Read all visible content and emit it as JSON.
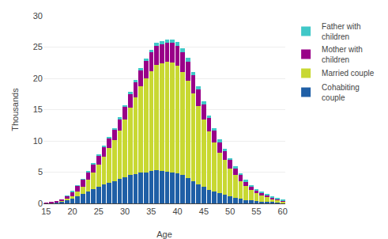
{
  "chart_data": {
    "type": "bar",
    "stacked": true,
    "xlabel": "Age",
    "ylabel": "Thousands",
    "x": [
      15,
      16,
      17,
      18,
      19,
      20,
      21,
      22,
      23,
      24,
      25,
      26,
      27,
      28,
      29,
      30,
      31,
      32,
      33,
      34,
      35,
      36,
      37,
      38,
      39,
      40,
      41,
      42,
      43,
      44,
      45,
      46,
      47,
      48,
      49,
      50,
      51,
      52,
      53,
      54,
      55,
      56,
      57,
      58,
      59,
      60
    ],
    "series": [
      {
        "name": "Cohabiting\ncouple",
        "color": "#1f5fa6",
        "values": [
          0.05,
          0.1,
          0.2,
          0.3,
          0.55,
          0.8,
          1.1,
          1.5,
          1.9,
          2.3,
          2.7,
          3.0,
          3.3,
          3.6,
          3.9,
          4.2,
          4.5,
          4.7,
          4.9,
          5.0,
          5.2,
          5.3,
          5.2,
          5.1,
          5.0,
          4.8,
          4.5,
          4.1,
          3.6,
          3.1,
          2.6,
          2.2,
          1.9,
          1.6,
          1.4,
          1.1,
          0.9,
          0.7,
          0.55,
          0.45,
          0.35,
          0.3,
          0.25,
          0.2,
          0.15,
          0.1
        ]
      },
      {
        "name": "Married couple",
        "color": "#c8d832",
        "values": [
          0.0,
          0.0,
          0.05,
          0.1,
          0.2,
          0.4,
          0.8,
          1.2,
          1.9,
          2.7,
          3.5,
          4.5,
          5.5,
          6.5,
          7.8,
          9.2,
          10.8,
          12.3,
          13.8,
          15.0,
          16.0,
          16.8,
          17.2,
          17.5,
          17.5,
          17.2,
          16.5,
          15.5,
          14.0,
          12.5,
          10.8,
          9.3,
          7.8,
          6.5,
          5.5,
          4.5,
          3.6,
          2.9,
          2.2,
          1.7,
          1.3,
          1.0,
          0.75,
          0.55,
          0.4,
          0.25
        ]
      },
      {
        "name": "Mother with\nchildren",
        "color": "#990088",
        "values": [
          0.05,
          0.1,
          0.15,
          0.25,
          0.4,
          0.65,
          0.9,
          1.1,
          1.2,
          1.3,
          1.4,
          1.5,
          1.6,
          1.7,
          1.8,
          2.0,
          2.2,
          2.4,
          2.6,
          2.8,
          3.0,
          3.1,
          3.1,
          3.15,
          3.15,
          3.2,
          3.2,
          3.05,
          2.85,
          2.65,
          2.45,
          2.15,
          1.9,
          1.7,
          1.5,
          1.3,
          1.1,
          0.9,
          0.75,
          0.6,
          0.5,
          0.4,
          0.3,
          0.25,
          0.2,
          0.12
        ]
      },
      {
        "name": "Father with\nchildren",
        "color": "#40c8c8",
        "values": [
          0.0,
          0.0,
          0.0,
          0.0,
          0.05,
          0.05,
          0.1,
          0.1,
          0.1,
          0.15,
          0.15,
          0.2,
          0.2,
          0.25,
          0.25,
          0.3,
          0.3,
          0.35,
          0.35,
          0.4,
          0.4,
          0.45,
          0.5,
          0.5,
          0.55,
          0.6,
          0.6,
          0.6,
          0.55,
          0.5,
          0.5,
          0.45,
          0.45,
          0.4,
          0.38,
          0.35,
          0.3,
          0.28,
          0.25,
          0.2,
          0.18,
          0.15,
          0.12,
          0.1,
          0.08,
          0.05
        ]
      }
    ],
    "xlim": [
      14.5,
      60.5
    ],
    "xticks": [
      15,
      20,
      25,
      30,
      35,
      40,
      45,
      50,
      55,
      60
    ],
    "ylim": [
      0,
      30
    ],
    "yticks": [
      0,
      5,
      10,
      15,
      20,
      25,
      30
    ],
    "grid": true,
    "legend": "right"
  }
}
